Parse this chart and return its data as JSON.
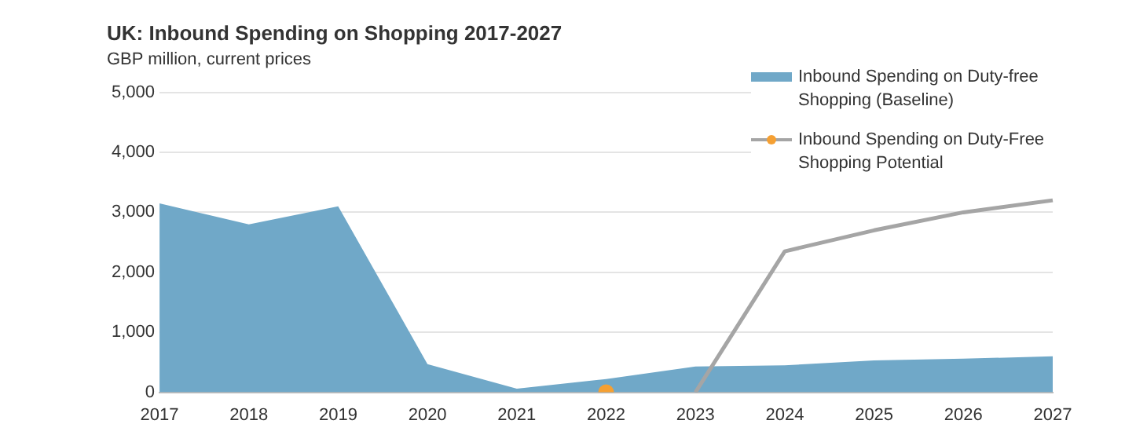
{
  "chart_data": {
    "type": "area",
    "title": "UK: Inbound Spending on Shopping 2017-2027",
    "subtitle": "GBP million, current prices",
    "categories": [
      "2017",
      "2018",
      "2019",
      "2020",
      "2021",
      "2022",
      "2023",
      "2024",
      "2025",
      "2026",
      "2027"
    ],
    "series": [
      {
        "name": "Inbound Spending on Duty-free Shopping (Baseline)",
        "color": "#70a8c8",
        "values": [
          3150,
          2800,
          3100,
          470,
          60,
          220,
          430,
          450,
          530,
          560,
          600
        ]
      },
      {
        "name": "Inbound Spending on Duty-Free Shopping Potential",
        "type": "line",
        "color": "#a5a5a5",
        "values": [
          null,
          null,
          null,
          null,
          null,
          null,
          0,
          2350,
          2700,
          3000,
          3200
        ]
      },
      {
        "type": "scatter",
        "color": "#f5a033",
        "values": [
          null,
          null,
          null,
          null,
          null,
          0,
          null,
          null,
          null,
          null,
          null
        ]
      }
    ],
    "ylim": [
      0,
      5000
    ],
    "yticks": [
      {
        "value": 0,
        "label": "0"
      },
      {
        "value": 1000,
        "label": "1,000"
      },
      {
        "value": 2000,
        "label": "2,000"
      },
      {
        "value": 3000,
        "label": "3,000"
      },
      {
        "value": 4000,
        "label": "4,000"
      },
      {
        "value": 5000,
        "label": "5,000"
      }
    ],
    "grid": "y",
    "legend": "top right"
  }
}
